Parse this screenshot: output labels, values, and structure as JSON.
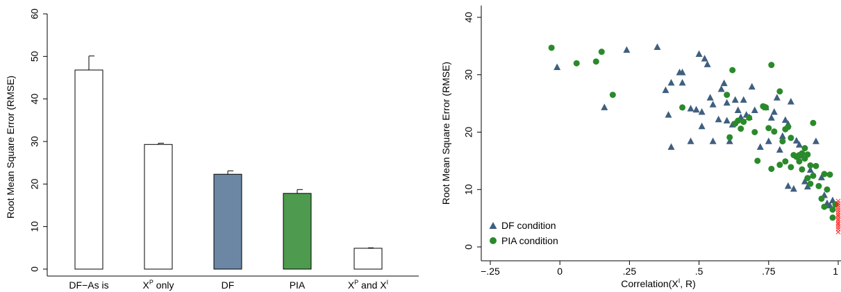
{
  "colors": {
    "df": "#6b87a3",
    "pia": "#4e9a4e",
    "empty": "#ffffff",
    "tri": "#3f5f7f",
    "dot": "#2a8a2a",
    "cross": "#ff2020"
  },
  "left_chart": {
    "ylabel": "Root Mean Square Error (RMSE)",
    "ylim": [
      0,
      60
    ],
    "yticks": [
      "0",
      "10",
      "20",
      "30",
      "40",
      "50",
      "60"
    ],
    "tick_labels": {
      "c0": "DF−As is",
      "c1": {
        "base": "X",
        "sup": "P",
        "rest": " only"
      },
      "c2": "DF",
      "c3": "PIA",
      "c4": {
        "a": "X",
        "asup": "P",
        "mid": " and X",
        "bsup": "I"
      }
    }
  },
  "right_chart": {
    "ylabel": "Root Mean Square Error (RMSE)",
    "xlabel": {
      "pre": "Correlation(X",
      "sup": "I",
      "post": ", R)"
    },
    "ylim": [
      0,
      40
    ],
    "xlim": [
      -0.25,
      1
    ],
    "yticks": [
      "0",
      "10",
      "20",
      "30",
      "40"
    ],
    "xticks": [
      "−.25",
      "0",
      ".25",
      ".5",
      ".75",
      "1"
    ],
    "legend": [
      "DF condition",
      "PIA condition"
    ]
  },
  "chart_data": [
    {
      "type": "bar",
      "categories": [
        "DF−As is",
        "XP only",
        "DF",
        "PIA",
        "XP and XI"
      ],
      "values": [
        46.8,
        29.3,
        22.3,
        17.8,
        4.9
      ],
      "errors_upper": [
        50.1,
        29.6,
        23.1,
        18.7,
        5.0
      ],
      "ylabel": "Root Mean Square Error (RMSE)",
      "ylim": [
        0,
        60
      ]
    },
    {
      "type": "scatter",
      "xlabel": "Correlation(XI, R)",
      "ylabel": "Root Mean Square Error (RMSE)",
      "xlim": [
        -0.25,
        1
      ],
      "ylim": [
        0,
        40
      ],
      "legend_position": "bottom-left",
      "series": [
        {
          "name": "DF condition",
          "marker": "triangle",
          "points": [
            [
              -0.01,
              31.3
            ],
            [
              0.16,
              24.3
            ],
            [
              0.24,
              34.3
            ],
            [
              0.35,
              34.8
            ],
            [
              0.38,
              27.3
            ],
            [
              0.39,
              23.0
            ],
            [
              0.4,
              28.6
            ],
            [
              0.4,
              17.4
            ],
            [
              0.43,
              30.4
            ],
            [
              0.44,
              30.4
            ],
            [
              0.44,
              28.6
            ],
            [
              0.47,
              24.1
            ],
            [
              0.47,
              18.4
            ],
            [
              0.49,
              23.9
            ],
            [
              0.5,
              33.6
            ],
            [
              0.51,
              23.5
            ],
            [
              0.51,
              21.0
            ],
            [
              0.52,
              32.8
            ],
            [
              0.53,
              31.8
            ],
            [
              0.54,
              26.0
            ],
            [
              0.55,
              24.8
            ],
            [
              0.55,
              18.4
            ],
            [
              0.57,
              22.2
            ],
            [
              0.58,
              27.5
            ],
            [
              0.59,
              28.5
            ],
            [
              0.6,
              25.1
            ],
            [
              0.6,
              22.0
            ],
            [
              0.61,
              18.4
            ],
            [
              0.62,
              21.3
            ],
            [
              0.63,
              25.6
            ],
            [
              0.64,
              23.8
            ],
            [
              0.65,
              22.6
            ],
            [
              0.66,
              25.6
            ],
            [
              0.67,
              23.0
            ],
            [
              0.68,
              22.6
            ],
            [
              0.69,
              27.9
            ],
            [
              0.7,
              23.8
            ],
            [
              0.72,
              17.4
            ],
            [
              0.74,
              24.3
            ],
            [
              0.75,
              18.4
            ],
            [
              0.76,
              22.5
            ],
            [
              0.77,
              23.5
            ],
            [
              0.78,
              26.0
            ],
            [
              0.79,
              16.9
            ],
            [
              0.8,
              19.3
            ],
            [
              0.81,
              22.1
            ],
            [
              0.82,
              21.4
            ],
            [
              0.82,
              10.6
            ],
            [
              0.83,
              25.3
            ],
            [
              0.84,
              10.1
            ],
            [
              0.85,
              18.5
            ],
            [
              0.86,
              17.8
            ],
            [
              0.87,
              15.9
            ],
            [
              0.88,
              11.4
            ],
            [
              0.89,
              10.5
            ],
            [
              0.9,
              13.4
            ],
            [
              0.92,
              18.4
            ],
            [
              0.94,
              12.1
            ],
            [
              0.95,
              9.0
            ],
            [
              0.96,
              7.6
            ],
            [
              0.97,
              7.2
            ],
            [
              0.98,
              8.1
            ]
          ]
        },
        {
          "name": "PIA condition",
          "marker": "circle",
          "points": [
            [
              -0.03,
              34.7
            ],
            [
              0.06,
              32.0
            ],
            [
              0.13,
              32.3
            ],
            [
              0.15,
              34.0
            ],
            [
              0.19,
              26.5
            ],
            [
              0.44,
              24.3
            ],
            [
              0.6,
              26.5
            ],
            [
              0.61,
              19.1
            ],
            [
              0.62,
              30.8
            ],
            [
              0.63,
              21.5
            ],
            [
              0.64,
              22.0
            ],
            [
              0.65,
              20.6
            ],
            [
              0.66,
              21.8
            ],
            [
              0.68,
              22.5
            ],
            [
              0.7,
              20.0
            ],
            [
              0.71,
              15.0
            ],
            [
              0.73,
              24.5
            ],
            [
              0.74,
              24.3
            ],
            [
              0.75,
              20.7
            ],
            [
              0.76,
              31.7
            ],
            [
              0.76,
              13.6
            ],
            [
              0.77,
              20.1
            ],
            [
              0.79,
              27.1
            ],
            [
              0.79,
              14.3
            ],
            [
              0.8,
              18.4
            ],
            [
              0.81,
              14.9
            ],
            [
              0.81,
              20.5
            ],
            [
              0.82,
              20.9
            ],
            [
              0.83,
              19.0
            ],
            [
              0.83,
              13.9
            ],
            [
              0.84,
              16.0
            ],
            [
              0.85,
              15.7
            ],
            [
              0.86,
              16.0
            ],
            [
              0.86,
              14.9
            ],
            [
              0.87,
              13.5
            ],
            [
              0.87,
              16.3
            ],
            [
              0.88,
              17.2
            ],
            [
              0.88,
              15.4
            ],
            [
              0.89,
              16.1
            ],
            [
              0.89,
              12.0
            ],
            [
              0.9,
              14.2
            ],
            [
              0.9,
              11.0
            ],
            [
              0.91,
              21.6
            ],
            [
              0.91,
              12.4
            ],
            [
              0.92,
              14.1
            ],
            [
              0.93,
              10.6
            ],
            [
              0.94,
              8.4
            ],
            [
              0.95,
              7.0
            ],
            [
              0.95,
              12.7
            ],
            [
              0.96,
              10.0
            ],
            [
              0.97,
              12.6
            ],
            [
              0.98,
              6.5
            ],
            [
              0.98,
              5.1
            ],
            [
              0.99,
              7.4
            ]
          ]
        },
        {
          "name": "",
          "marker": "x",
          "points": [
            [
              1.0,
              2.6
            ],
            [
              1.0,
              3.1
            ],
            [
              1.0,
              3.5
            ],
            [
              1.0,
              3.9
            ],
            [
              1.0,
              4.2
            ],
            [
              1.0,
              4.6
            ],
            [
              1.0,
              4.9
            ],
            [
              1.0,
              5.3
            ],
            [
              1.0,
              5.6
            ],
            [
              1.0,
              6.0
            ],
            [
              1.0,
              6.4
            ],
            [
              1.0,
              6.8
            ],
            [
              1.0,
              7.2
            ],
            [
              1.0,
              7.6
            ],
            [
              1.0,
              8.0
            ]
          ]
        }
      ]
    }
  ]
}
